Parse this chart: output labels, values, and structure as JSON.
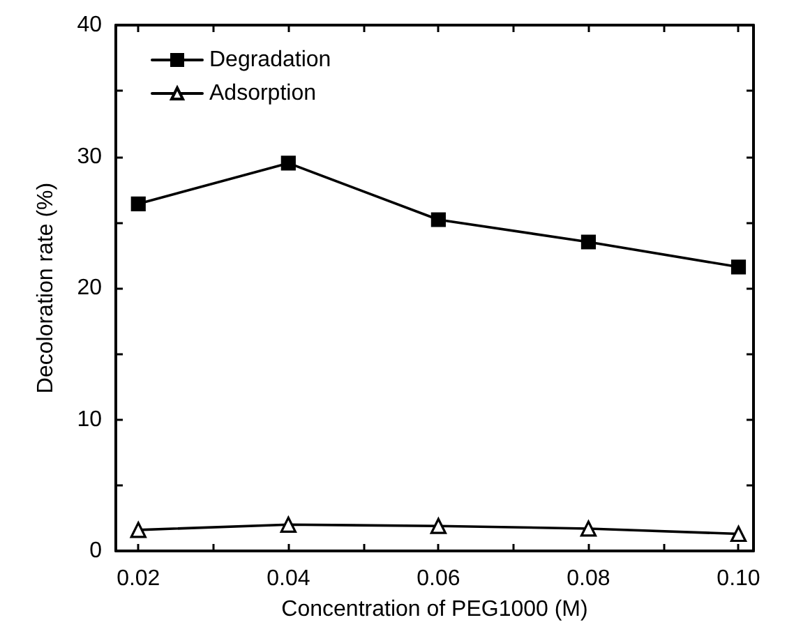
{
  "chart_data": {
    "type": "line",
    "xlabel": "Concentration of PEG1000 (M)",
    "ylabel": "Decoloration rate (%)",
    "x": [
      0.02,
      0.04,
      0.06,
      0.08,
      0.1
    ],
    "series": [
      {
        "name": "Degradation",
        "color": "#000000",
        "marker": "square",
        "values": [
          26.4,
          29.5,
          25.2,
          23.5,
          21.6
        ]
      },
      {
        "name": "Adsorption",
        "color": "#000000",
        "marker": "triangle",
        "values": [
          1.6,
          2.0,
          1.9,
          1.7,
          1.3
        ]
      }
    ],
    "xlim": [
      0.017,
      0.102
    ],
    "xticks": [
      0.02,
      {
        "value": 0.03,
        "label": null
      },
      0.04,
      {
        "value": 0.05,
        "label": null
      },
      0.06,
      {
        "value": 0.07,
        "label": null
      },
      0.08,
      {
        "value": 0.09,
        "label": null
      },
      {
        "value": 0.1,
        "label": "0.10"
      }
    ],
    "ylim": [
      0,
      40
    ],
    "yticks": [
      0,
      {
        "value": 5,
        "label": null
      },
      10,
      {
        "value": 15,
        "label": null
      },
      20,
      {
        "value": 25,
        "label": null
      },
      30,
      {
        "value": 35,
        "label": null
      },
      40
    ],
    "grid": false,
    "legend": "top left",
    "line_style": "solid"
  }
}
